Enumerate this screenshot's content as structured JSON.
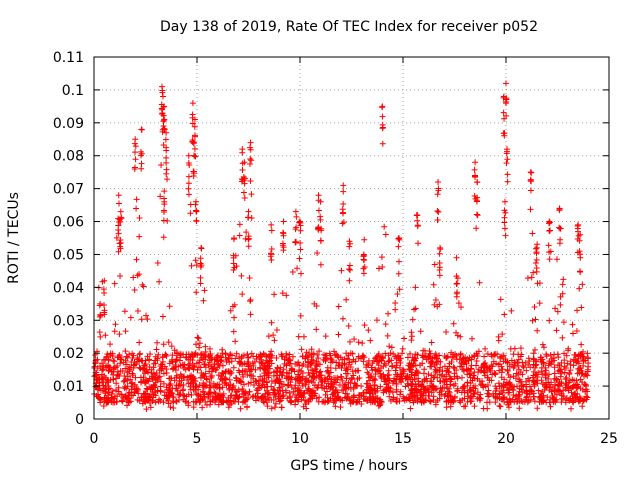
{
  "chart_data": {
    "type": "scatter",
    "title": "Day 138 of 2019, Rate Of TEC Index for receiver p052",
    "xlabel": "GPS time / hours",
    "ylabel": "ROTI / TECUs",
    "xlim": [
      0,
      25
    ],
    "ylim": [
      0,
      0.11
    ],
    "x_ticks": [
      0,
      5,
      10,
      15,
      20,
      25
    ],
    "x_tick_labels": [
      "0",
      "5",
      "10",
      "15",
      "20",
      "25"
    ],
    "y_ticks": [
      0,
      0.01,
      0.02,
      0.03,
      0.04,
      0.05,
      0.06,
      0.07,
      0.08,
      0.09,
      0.1,
      0.11
    ],
    "y_tick_labels": [
      "0",
      "0.01",
      "0.02",
      "0.03",
      "0.04",
      "0.05",
      "0.06",
      "0.07",
      "0.08",
      "0.09",
      "0.1",
      "0.11"
    ],
    "grid": true,
    "marker": "+",
    "color": "#ff0000",
    "data_range_x": [
      0,
      24
    ],
    "baseline_band": [
      0.005,
      0.02
    ],
    "series": [
      {
        "name": "ROTI",
        "x": [
          3.3,
          3.35,
          3.4,
          3.5,
          4.8,
          4.9,
          4.85,
          4.95,
          2.3,
          2.0,
          3.4,
          4.6,
          7.2,
          7.3,
          7.6,
          7.5,
          9.8,
          10.0,
          10.9,
          11.0,
          12.1,
          12.4,
          14.0,
          14.8,
          15.7,
          16.7,
          16.8,
          18.5,
          18.6,
          19.9,
          20.0,
          20.05,
          19.95,
          21.2,
          22.6,
          23.5,
          23.6,
          1.2,
          1.3,
          0.3,
          0.5,
          5.2,
          6.8,
          8.6,
          9.2,
          13.1,
          17.6,
          21.5,
          22.1
        ],
        "y": [
          0.101,
          0.098,
          0.095,
          0.087,
          0.096,
          0.091,
          0.084,
          0.066,
          0.088,
          0.085,
          0.067,
          0.08,
          0.082,
          0.078,
          0.084,
          0.063,
          0.063,
          0.06,
          0.068,
          0.066,
          0.071,
          0.054,
          0.095,
          0.055,
          0.062,
          0.072,
          0.052,
          0.078,
          0.072,
          0.098,
          0.102,
          0.082,
          0.066,
          0.075,
          0.064,
          0.059,
          0.056,
          0.068,
          0.063,
          0.035,
          0.042,
          0.052,
          0.055,
          0.059,
          0.06,
          0.05,
          0.049,
          0.052,
          0.06
        ]
      }
    ]
  }
}
